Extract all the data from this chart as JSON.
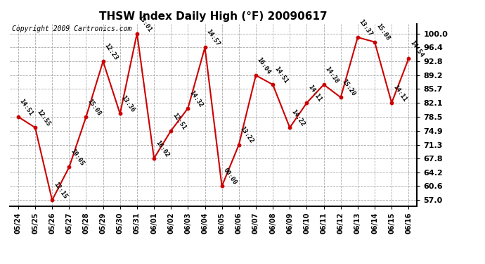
{
  "title": "THSW Index Daily High (°F) 20090617",
  "copyright": "Copyright 2009 Cartronics.com",
  "background_color": "#ffffff",
  "line_color": "#cc0000",
  "marker_color": "#cc0000",
  "grid_color": "#aaaaaa",
  "dates": [
    "05/24",
    "05/25",
    "05/26",
    "05/27",
    "05/28",
    "05/29",
    "05/30",
    "05/31",
    "06/01",
    "06/02",
    "06/03",
    "06/04",
    "06/05",
    "06/06",
    "06/07",
    "06/08",
    "06/09",
    "06/10",
    "06/11",
    "06/12",
    "06/13",
    "06/14",
    "06/15",
    "06/16"
  ],
  "values": [
    78.5,
    75.7,
    57.0,
    65.5,
    78.5,
    92.8,
    79.3,
    100.0,
    67.8,
    74.9,
    80.7,
    96.4,
    60.6,
    71.3,
    89.2,
    86.8,
    75.7,
    82.1,
    86.8,
    83.5,
    99.0,
    97.8,
    82.1,
    93.5
  ],
  "labels": [
    "14:51",
    "12:55",
    "12:15",
    "19:05",
    "15:08",
    "12:23",
    "13:36",
    "13:01",
    "16:02",
    "12:51",
    "14:32",
    "14:57",
    "00:00",
    "13:22",
    "16:04",
    "14:51",
    "14:22",
    "14:11",
    "14:38",
    "15:20",
    "13:37",
    "15:08",
    "14:11",
    "14:54"
  ],
  "ylim": [
    55.5,
    102.5
  ],
  "yticks": [
    57.0,
    60.6,
    64.2,
    67.8,
    71.3,
    74.9,
    78.5,
    82.1,
    85.7,
    89.2,
    92.8,
    96.4,
    100.0
  ],
  "title_fontsize": 11,
  "label_fontsize": 6.5,
  "tick_fontsize": 8,
  "copyright_fontsize": 7,
  "fig_width": 6.9,
  "fig_height": 3.75,
  "dpi": 100
}
